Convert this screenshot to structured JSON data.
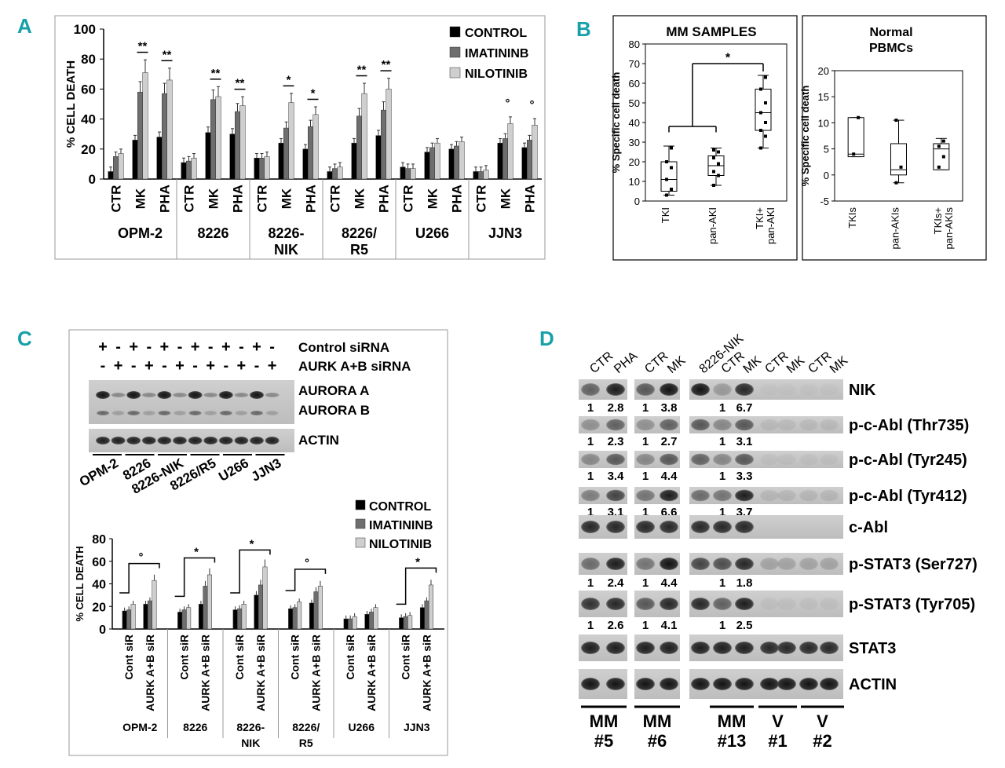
{
  "colors": {
    "control": "#000000",
    "imatinib": "#6e6e6e",
    "nilotinib": "#cfcfcf",
    "accent": "#16a0a8"
  },
  "chart_data": [
    {
      "panel": "A",
      "type": "bar",
      "ylabel": "% CELL DEATH",
      "ylim": [
        0,
        100
      ],
      "yticks": [
        0,
        20,
        40,
        60,
        80,
        100
      ],
      "legend": [
        "CONTROL",
        "IMATININB",
        "NILOTINIB"
      ],
      "legend_position": "top-right",
      "groups": [
        {
          "name": "OPM-2",
          "bars": [
            {
              "label": "CTR",
              "values": [
                5,
                15,
                17
              ],
              "sig": ""
            },
            {
              "label": "MK",
              "values": [
                26,
                58,
                71
              ],
              "sig": "**"
            },
            {
              "label": "PHA",
              "values": [
                28,
                57,
                66
              ],
              "sig": "**"
            }
          ]
        },
        {
          "name": "8226",
          "bars": [
            {
              "label": "CTR",
              "values": [
                11,
                12,
                14
              ],
              "sig": ""
            },
            {
              "label": "MK",
              "values": [
                31,
                53,
                55
              ],
              "sig": "**"
            },
            {
              "label": "PHA",
              "values": [
                30,
                45,
                49
              ],
              "sig": "**"
            }
          ]
        },
        {
          "name": "8226-NIK",
          "bars": [
            {
              "label": "CTR",
              "values": [
                14,
                14,
                15
              ],
              "sig": ""
            },
            {
              "label": "MK",
              "values": [
                24,
                34,
                51
              ],
              "sig": "*"
            },
            {
              "label": "PHA",
              "values": [
                20,
                35,
                43
              ],
              "sig": "*"
            }
          ]
        },
        {
          "name": "8226/R5",
          "bars": [
            {
              "label": "CTR",
              "values": [
                5,
                7,
                8
              ],
              "sig": ""
            },
            {
              "label": "MK",
              "values": [
                24,
                42,
                57
              ],
              "sig": "**"
            },
            {
              "label": "PHA",
              "values": [
                29,
                46,
                60
              ],
              "sig": "**"
            }
          ]
        },
        {
          "name": "U266",
          "bars": [
            {
              "label": "CTR",
              "values": [
                8,
                7,
                7
              ],
              "sig": ""
            },
            {
              "label": "MK",
              "values": [
                18,
                21,
                24
              ],
              "sig": ""
            },
            {
              "label": "PHA",
              "values": [
                20,
                22,
                25
              ],
              "sig": ""
            }
          ]
        },
        {
          "name": "JJN3",
          "bars": [
            {
              "label": "CTR",
              "values": [
                5,
                5,
                6
              ],
              "sig": ""
            },
            {
              "label": "MK",
              "values": [
                24,
                27,
                37
              ],
              "sig": "°"
            },
            {
              "label": "PHA",
              "values": [
                21,
                26,
                36
              ],
              "sig": "°"
            }
          ]
        }
      ],
      "group_label_lines": [
        [
          "OPM-2"
        ],
        [
          "8226"
        ],
        [
          "8226-",
          "NIK"
        ],
        [
          "8226/",
          "R5"
        ],
        [
          "U266"
        ],
        [
          "JJN3"
        ]
      ]
    },
    {
      "panel": "B-left",
      "type": "box",
      "title": "MM SAMPLES",
      "ylabel": "% Specific cell death",
      "ylim": [
        0,
        80
      ],
      "yticks": [
        0,
        10,
        20,
        30,
        40,
        50,
        60,
        70,
        80
      ],
      "significance": "*",
      "boxes": [
        {
          "label_lines": [
            "TKI"
          ],
          "min": 3,
          "q1": 5,
          "median": 11,
          "q3": 20,
          "max": 28,
          "points": [
            3,
            6,
            11,
            17,
            20,
            27
          ]
        },
        {
          "label_lines": [
            "pan-AKI"
          ],
          "min": 8,
          "q1": 13,
          "median": 18,
          "q3": 23,
          "max": 27,
          "points": [
            8,
            13,
            15,
            19,
            22,
            25,
            26
          ]
        },
        {
          "label_lines": [
            "TKI+",
            "pan-AKI"
          ],
          "min": 27,
          "q1": 36,
          "median": 45,
          "q3": 57,
          "max": 64,
          "points": [
            27,
            33,
            36,
            40,
            45,
            50,
            57,
            63
          ]
        }
      ]
    },
    {
      "panel": "B-right",
      "type": "box",
      "title_lines": [
        "Normal",
        "PBMCs"
      ],
      "ylabel": "% Specific cell death",
      "ylim": [
        -5,
        20
      ],
      "yticks": [
        -5,
        0,
        5,
        10,
        15,
        20
      ],
      "boxes": [
        {
          "label_lines": [
            "TKIs"
          ],
          "min": 3.5,
          "q1": 3.5,
          "median": 4,
          "q3": 11,
          "max": 11,
          "points": [
            4,
            11
          ]
        },
        {
          "label_lines": [
            "pan-AKIs"
          ],
          "min": -1.5,
          "q1": 0,
          "median": 1,
          "q3": 6,
          "max": 10.5,
          "points": [
            -1.5,
            1.5,
            10.5
          ]
        },
        {
          "label_lines": [
            "TKIs+",
            "pan-AKIs"
          ],
          "min": 1,
          "q1": 1,
          "median": 5,
          "q3": 6,
          "max": 7,
          "points": [
            1.5,
            3.5,
            5.5,
            6.5
          ]
        }
      ]
    },
    {
      "panel": "C",
      "type": "bar",
      "ylabel": "% CELL DEATH",
      "ylim": [
        0,
        80
      ],
      "yticks": [
        0,
        20,
        40,
        60,
        80
      ],
      "legend": [
        "CONTROL",
        "IMATININB",
        "NILOTINIB"
      ],
      "legend_position": "top-right",
      "groups": [
        {
          "name": "OPM-2",
          "bars": [
            {
              "label": "Cont siR",
              "values": [
                16,
                17,
                22
              ]
            },
            {
              "label": "AURK A+B siR",
              "values": [
                22,
                25,
                43
              ]
            }
          ],
          "sig": "°"
        },
        {
          "name": "8226",
          "bars": [
            {
              "label": "Cont siR",
              "values": [
                15,
                17,
                19
              ]
            },
            {
              "label": "AURK A+B siR",
              "values": [
                22,
                38,
                48
              ]
            }
          ],
          "sig": "*"
        },
        {
          "name": "8226-NIK",
          "bars": [
            {
              "label": "Cont siR",
              "values": [
                17,
                18,
                22
              ]
            },
            {
              "label": "AURK A+B siR",
              "values": [
                30,
                39,
                55
              ]
            }
          ],
          "sig": "*"
        },
        {
          "name": "8226/R5",
          "bars": [
            {
              "label": "Cont siR",
              "values": [
                18,
                19,
                24
              ]
            },
            {
              "label": "AURK A+B siR",
              "values": [
                23,
                33,
                38
              ]
            }
          ],
          "sig": "°"
        },
        {
          "name": "U266",
          "bars": [
            {
              "label": "Cont siR",
              "values": [
                9,
                9,
                11
              ]
            },
            {
              "label": "AURK A+B siR",
              "values": [
                13,
                15,
                19
              ]
            }
          ],
          "sig": ""
        },
        {
          "name": "JJN3",
          "bars": [
            {
              "label": "Cont siR",
              "values": [
                10,
                11,
                12
              ]
            },
            {
              "label": "AURK A+B siR",
              "values": [
                19,
                25,
                39
              ]
            }
          ],
          "sig": "*"
        }
      ],
      "group_label_lines": [
        [
          "OPM-2"
        ],
        [
          "8226"
        ],
        [
          "8226-",
          "NIK"
        ],
        [
          "8226/",
          "R5"
        ],
        [
          "U266"
        ],
        [
          "JJN3"
        ]
      ]
    }
  ],
  "panels": {
    "a": {
      "letter": "A"
    },
    "b": {
      "letter": "B",
      "left_title": "MM SAMPLES",
      "right_title_1": "Normal",
      "right_title_2": "PBMCs",
      "sig": "*"
    },
    "c": {
      "letter": "C",
      "control_sirna_label": "Control siRNA",
      "aurk_sirna_label": "AURK A+B siRNA",
      "control_sirna_signs": [
        "+",
        "-",
        "+",
        "-",
        "+",
        "-",
        "+",
        "-",
        "+",
        "-",
        "+",
        "-"
      ],
      "aurk_sirna_signs": [
        "-",
        "+",
        "-",
        "+",
        "-",
        "+",
        "-",
        "+",
        "-",
        "+",
        "-",
        "+"
      ],
      "blot_labels": {
        "aurora_a": "AURORA A",
        "aurora_b": "AURORA B",
        "actin": "ACTIN"
      },
      "cell_lines": [
        "OPM-2",
        "8226",
        "8226-NIK",
        "8226/R5",
        "U266",
        "JJN3"
      ]
    },
    "d": {
      "letter": "D",
      "lane_headers": {
        "g1": [
          "CTR",
          "PHA"
        ],
        "g2": [
          "CTR",
          "MK"
        ],
        "g3": [
          "8226-NIK",
          "CTR",
          "MK"
        ],
        "g4": [
          "CTR",
          "MK",
          "CTR",
          "MK"
        ]
      },
      "rows": [
        {
          "label": "NIK",
          "q": [
            [
              "1",
              "2.8"
            ],
            [
              "1",
              "3.8"
            ],
            [
              "1",
              "6.7"
            ]
          ]
        },
        {
          "label": "p-c-Abl (Thr735)",
          "q": [
            [
              "1",
              "2.3"
            ],
            [
              "1",
              "2.7"
            ],
            [
              "1",
              "3.1"
            ]
          ]
        },
        {
          "label": "p-c-Abl (Tyr245)",
          "q": [
            [
              "1",
              "3.4"
            ],
            [
              "1",
              "4.4"
            ],
            [
              "1",
              "3.3"
            ]
          ]
        },
        {
          "label": "p-c-Abl (Tyr412)",
          "q": [
            [
              "1",
              "3.1"
            ],
            [
              "1",
              "6.6"
            ],
            [
              "1",
              "3.7"
            ]
          ]
        },
        {
          "label": "c-Abl",
          "q": null
        },
        {
          "label": "p-STAT3 (Ser727)",
          "q": [
            [
              "1",
              "2.4"
            ],
            [
              "1",
              "4.4"
            ],
            [
              "1",
              "1.8"
            ]
          ]
        },
        {
          "label": "p-STAT3 (Tyr705)",
          "q": [
            [
              "1",
              "2.6"
            ],
            [
              "1",
              "4.1"
            ],
            [
              "1",
              "2.5"
            ]
          ]
        },
        {
          "label": "STAT3",
          "q": null
        },
        {
          "label": "ACTIN",
          "q": null
        }
      ],
      "samples": [
        {
          "line1": "MM",
          "line2": "#5"
        },
        {
          "line1": "MM",
          "line2": "#6"
        },
        {
          "line1": "MM",
          "line2": "#13"
        },
        {
          "line1": "V",
          "line2": "#1"
        },
        {
          "line1": "V",
          "line2": "#2"
        }
      ]
    }
  }
}
